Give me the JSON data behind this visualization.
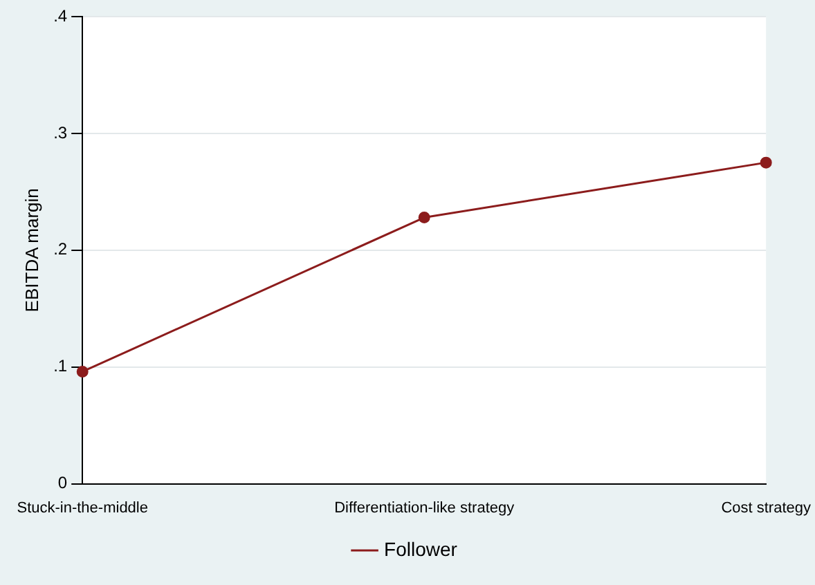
{
  "chart_data": {
    "type": "line",
    "ylabel": "EBITDA margin",
    "categories": [
      "Stuck-in-the-middle",
      "Differentiation-like strategy",
      "Cost strategy"
    ],
    "series": [
      {
        "name": "Follower",
        "color": "#8c1c1c",
        "values": [
          0.096,
          0.228,
          0.275
        ]
      }
    ],
    "ylim": [
      0,
      0.4
    ],
    "yticks": [
      0,
      {
        "value": 0.1,
        "label": ".1"
      },
      {
        "value": 0.2,
        "label": ".2"
      },
      {
        "value": 0.3,
        "label": ".3"
      },
      {
        "value": 0.4,
        "label": ".4"
      }
    ],
    "grid": "y",
    "legend": "bottom",
    "marker": "circle",
    "line_style": "solid"
  }
}
